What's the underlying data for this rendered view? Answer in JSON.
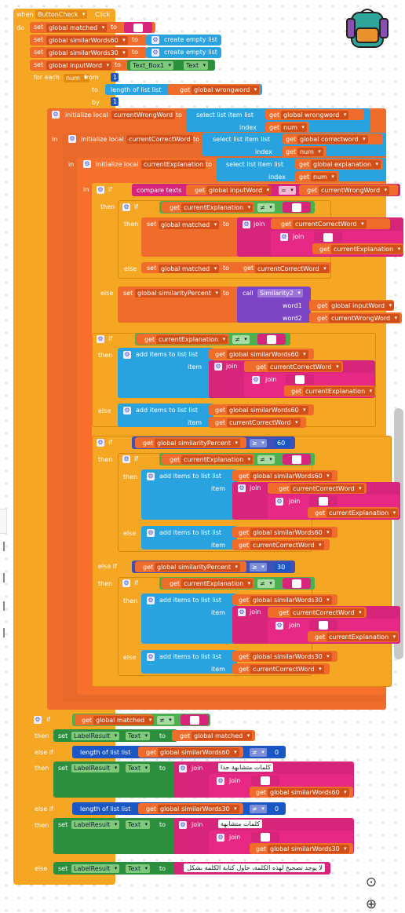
{
  "event": {
    "when": "when",
    "component": "ButtonCheck",
    "event": "Click",
    "do": "do"
  },
  "kw": {
    "set": "set",
    "to": "to",
    "get": "get",
    "for_each": "for each",
    "from": "from",
    "by": "by",
    "in": "in",
    "if": "if",
    "then": "then",
    "else": "else",
    "else_if": "else if",
    "init_local": "initialize local",
    "select_item": "select list item  list",
    "index": "index",
    "compare": "compare texts",
    "join": "join",
    "call": "call",
    "word1": "word1",
    "word2": "word2",
    "add_items": "add items to list  list",
    "item": "item",
    "length": "length of list  list",
    "create_empty": "create empty list"
  },
  "vars": {
    "matched": "global matched",
    "sw60": "global similarWords60",
    "sw30": "global similarWords30",
    "inputWord": "global inputWord",
    "wrongword": "global wrongword",
    "correctword": "global correctword",
    "explanation": "global explanation",
    "simPercent": "global similarityPercent",
    "num": "num",
    "curWrong": "currentWrongWord",
    "curCorrect": "currentCorrectWord",
    "curExpl": "currentExplanation"
  },
  "components": {
    "textbox": "Text_Box1",
    "text": "Text",
    "label": "LabelResult",
    "sim_proc": "Similarity2"
  },
  "ops": {
    "neq": "≠",
    "eq": "=",
    "gte": "≥"
  },
  "literals": {
    "one": "1",
    "zero": "0",
    "n60": "60",
    "n30": "30",
    "empty": "\" \"",
    "ar_very_similar": "كلمات متشابهة جدا",
    "ar_similar": "كلمات متشابهة",
    "ar_no_fix": "لا يوجد تصحيح لهذه الكلمة، حاول كتابة الكلمة بشكل"
  },
  "colors": {
    "event": "#f5a623",
    "variable": "#ef6c2a",
    "list": "#29a3e0",
    "control": "#f5a623",
    "text": "#d6257a",
    "logic": "#4caf50",
    "math": "#1b56c5",
    "procedure": "#7b45c5",
    "component": "#2c8f3e",
    "compare_math": "#3f51b5"
  }
}
